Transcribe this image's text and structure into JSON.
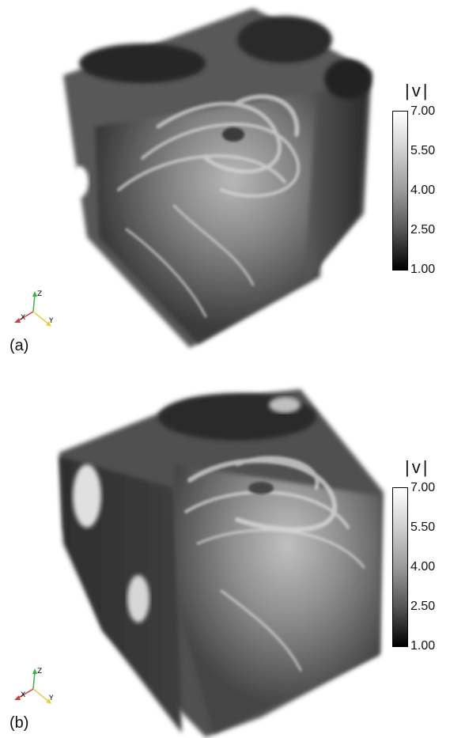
{
  "panels": [
    {
      "label": "(a)",
      "colorbar": {
        "title": "|v|",
        "ticks": [
          "7.00",
          "5.50",
          "4.00",
          "2.50",
          "1.00"
        ],
        "min": 1.0,
        "max": 7.0
      },
      "axes": {
        "x": "X",
        "y": "Y",
        "z": "Z"
      }
    },
    {
      "label": "(b)",
      "colorbar": {
        "title": "|v|",
        "ticks": [
          "7.00",
          "5.50",
          "4.00",
          "2.50",
          "1.00"
        ],
        "min": 1.0,
        "max": 7.0
      },
      "axes": {
        "x": "X",
        "y": "Y",
        "z": "Z"
      }
    }
  ],
  "colors": {
    "colormap_high": "#ffffff",
    "colormap_low": "#000000",
    "x_axis": "#d23c3c",
    "y_axis": "#e6d23c",
    "z_axis": "#3cb43c"
  }
}
